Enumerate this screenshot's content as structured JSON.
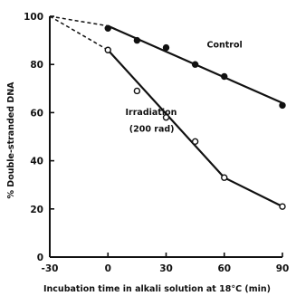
{
  "chart_data": {
    "type": "line",
    "xlabel": "Incubation time in alkali solution at 18°C (min)",
    "ylabel": "% Double-stranded DNA",
    "xlim": [
      -30,
      90
    ],
    "ylim": [
      0,
      100
    ],
    "xticks": [
      "-30",
      "0",
      "30",
      "60",
      "90"
    ],
    "xtick_values": [
      -30,
      0,
      30,
      60,
      90
    ],
    "yticks": [
      "0",
      "20",
      "40",
      "60",
      "80",
      "100"
    ],
    "ytick_values": [
      0,
      20,
      40,
      60,
      80,
      100
    ],
    "grid": false,
    "series": [
      {
        "name": "Control",
        "marker": "filled-circle",
        "x": [
          0,
          15,
          30,
          45,
          60,
          90
        ],
        "y": [
          95,
          90,
          87,
          80,
          75,
          63
        ],
        "fit_solid": [
          [
            0,
            96
          ],
          [
            90,
            64
          ]
        ],
        "fit_dashed": [
          [
            -30,
            100
          ],
          [
            0,
            96
          ]
        ]
      },
      {
        "name": "Irradiation (200 rad)",
        "marker": "open-circle",
        "x": [
          0,
          15,
          30,
          45,
          60,
          90
        ],
        "y": [
          86,
          69,
          58,
          48,
          33,
          21
        ],
        "fit_solid": [
          [
            0,
            86
          ],
          [
            60,
            33
          ],
          [
            90,
            21
          ]
        ],
        "fit_dashed": [
          [
            -30,
            100
          ],
          [
            0,
            86
          ]
        ]
      }
    ],
    "annotations": [
      {
        "text": "Control",
        "x": 51,
        "y": 87
      },
      {
        "text": "Irradiation",
        "x": 9,
        "y": 59
      },
      {
        "text": "(200 rad)",
        "x": 11,
        "y": 52
      }
    ]
  }
}
